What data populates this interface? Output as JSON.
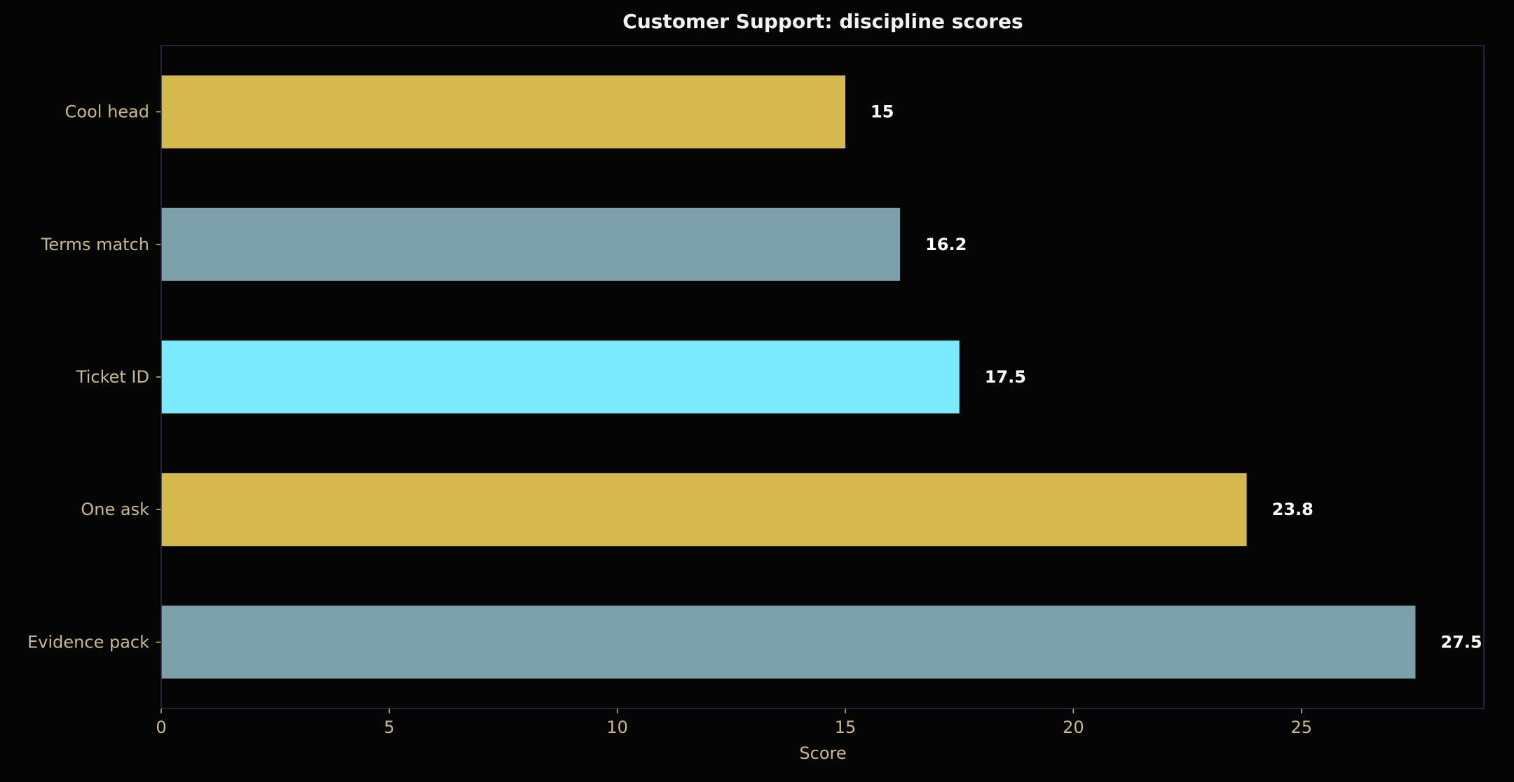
{
  "chart_data": {
    "type": "bar",
    "orientation": "horizontal",
    "title": "Customer Support: discipline scores",
    "xlabel": "Score",
    "ylabel": "",
    "xlim": [
      0,
      29
    ],
    "xticks": [
      0,
      5,
      10,
      15,
      20,
      25
    ],
    "categories": [
      "Cool head",
      "Terms match",
      "Ticket ID",
      "One ask",
      "Evidence pack"
    ],
    "values": [
      15,
      16.2,
      17.5,
      23.8,
      27.5
    ],
    "value_labels": [
      "15",
      "16.2",
      "17.5",
      "23.8",
      "27.5"
    ],
    "bar_colors": [
      "#d4b94f",
      "#7ba0aa",
      "#7beaff",
      "#d4b94f",
      "#7ba0aa"
    ],
    "grid": false,
    "legend": "none",
    "colors": {
      "background": "#050505",
      "frame": "#2e2e48",
      "tick_text": "#c8b98f",
      "title_text": "#f2f2f2",
      "data_label_text": "#ffffff"
    }
  }
}
